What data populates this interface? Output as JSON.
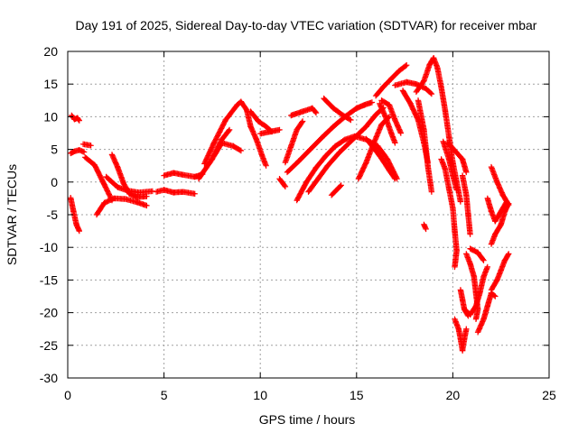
{
  "chart_data": {
    "type": "scatter",
    "title": "Day 191 of 2025, Sidereal Day-to-day VTEC variation (SDTVAR) for receiver mbar",
    "xlabel": "GPS time / hours",
    "ylabel": "SDTVAR / TECUs",
    "xlim": [
      0,
      25
    ],
    "ylim": [
      -30,
      20
    ],
    "xticks": [
      "0",
      "5",
      "10",
      "15",
      "20",
      "25"
    ],
    "yticks": [
      "20",
      "15",
      "10",
      "5",
      "0",
      "-5",
      "-10",
      "-15",
      "-20",
      "-25",
      "-30"
    ],
    "grid": true,
    "marker": "plus",
    "color": "#ff0000",
    "segments": [
      [
        [
          0.2,
          10.2
        ],
        [
          0.35,
          9.6
        ],
        [
          0.5,
          9.8
        ],
        [
          0.6,
          9.4
        ]
      ],
      [
        [
          0.15,
          4.4
        ],
        [
          0.35,
          4.7
        ],
        [
          0.6,
          4.9
        ],
        [
          0.85,
          4.6
        ]
      ],
      [
        [
          0.15,
          -2.4
        ],
        [
          0.3,
          -4.5
        ],
        [
          0.45,
          -6.5
        ],
        [
          0.6,
          -7.5
        ]
      ],
      [
        [
          0.8,
          5.8
        ],
        [
          1.2,
          5.6
        ]
      ],
      [
        [
          0.9,
          3.8
        ],
        [
          1.4,
          2.6
        ],
        [
          1.9,
          -0.4
        ],
        [
          2.3,
          -2.8
        ]
      ],
      [
        [
          1.5,
          -5.0
        ],
        [
          1.9,
          -3.2
        ],
        [
          2.4,
          -2.5
        ],
        [
          3.0,
          -2.6
        ],
        [
          3.6,
          -3.1
        ],
        [
          4.1,
          -3.6
        ]
      ],
      [
        [
          2.3,
          4.2
        ],
        [
          2.6,
          2.2
        ],
        [
          2.9,
          -0.2
        ],
        [
          3.2,
          -1.8
        ],
        [
          3.6,
          -2.3
        ],
        [
          4.1,
          -2.2
        ]
      ],
      [
        [
          2.0,
          0.8
        ],
        [
          2.6,
          -0.8
        ],
        [
          3.1,
          -1.3
        ],
        [
          3.7,
          -1.6
        ],
        [
          4.4,
          -1.4
        ]
      ],
      [
        [
          4.6,
          -1.5
        ],
        [
          5.0,
          -1.2
        ],
        [
          5.5,
          -1.6
        ],
        [
          6.0,
          -1.5
        ],
        [
          6.6,
          -1.8
        ]
      ],
      [
        [
          5.0,
          1.0
        ],
        [
          5.5,
          1.4
        ],
        [
          6.0,
          1.1
        ],
        [
          6.6,
          0.8
        ],
        [
          7.0,
          1.2
        ]
      ],
      [
        [
          6.8,
          0.5
        ],
        [
          7.5,
          3.5
        ],
        [
          8.0,
          6.5
        ],
        [
          8.4,
          8.0
        ]
      ],
      [
        [
          7.1,
          2.8
        ],
        [
          7.6,
          6.0
        ],
        [
          8.2,
          9.5
        ],
        [
          8.8,
          11.8
        ],
        [
          9.0,
          12.3
        ],
        [
          9.3,
          11.0
        ],
        [
          9.5,
          8.5
        ],
        [
          9.8,
          6.5
        ],
        [
          10.1,
          4.0
        ],
        [
          10.3,
          2.5
        ]
      ],
      [
        [
          7.6,
          4.0
        ],
        [
          8.0,
          6.0
        ],
        [
          8.6,
          5.5
        ],
        [
          9.0,
          4.8
        ]
      ],
      [
        [
          9.5,
          10.8
        ],
        [
          9.9,
          9.3
        ],
        [
          10.3,
          8.5
        ],
        [
          10.6,
          7.7
        ]
      ],
      [
        [
          10.0,
          7.4
        ],
        [
          10.5,
          7.7
        ],
        [
          11.0,
          8.0
        ]
      ],
      [
        [
          11.0,
          0.5
        ],
        [
          11.3,
          -0.7
        ]
      ],
      [
        [
          11.3,
          3.0
        ],
        [
          11.6,
          5.5
        ],
        [
          11.9,
          8.0
        ],
        [
          12.2,
          9.3
        ]
      ],
      [
        [
          11.4,
          1.5
        ],
        [
          12.0,
          3.2
        ],
        [
          12.6,
          5.0
        ],
        [
          13.2,
          6.8
        ],
        [
          13.8,
          8.5
        ],
        [
          14.4,
          10.0
        ],
        [
          15.0,
          11.3
        ],
        [
          15.4,
          11.8
        ],
        [
          15.8,
          12.2
        ]
      ],
      [
        [
          11.6,
          10.2
        ],
        [
          12.2,
          10.8
        ],
        [
          12.7,
          11.3
        ],
        [
          12.9,
          10.6
        ]
      ],
      [
        [
          11.9,
          -2.8
        ],
        [
          12.4,
          0.0
        ],
        [
          12.9,
          2.2
        ],
        [
          13.4,
          4.0
        ],
        [
          13.9,
          5.5
        ],
        [
          14.4,
          6.5
        ],
        [
          14.9,
          7.0
        ],
        [
          15.5,
          6.5
        ],
        [
          16.1,
          5.5
        ],
        [
          16.6,
          3.5
        ],
        [
          17.1,
          0.5
        ]
      ],
      [
        [
          12.5,
          -1.5
        ],
        [
          13.0,
          0.5
        ],
        [
          13.5,
          2.5
        ],
        [
          14.1,
          4.5
        ],
        [
          14.8,
          6.5
        ],
        [
          15.5,
          8.5
        ],
        [
          16.0,
          10.3
        ],
        [
          16.4,
          11.4
        ]
      ],
      [
        [
          13.7,
          -2.0
        ],
        [
          14.2,
          -0.5
        ]
      ],
      [
        [
          13.3,
          12.8
        ],
        [
          13.8,
          11.3
        ],
        [
          14.3,
          10.2
        ],
        [
          14.7,
          9.5
        ]
      ],
      [
        [
          15.1,
          0.5
        ],
        [
          15.5,
          3.0
        ],
        [
          15.9,
          6.0
        ],
        [
          16.3,
          8.8
        ],
        [
          16.7,
          10.0
        ]
      ],
      [
        [
          15.5,
          6.6
        ],
        [
          15.9,
          5.2
        ],
        [
          16.3,
          3.6
        ],
        [
          16.7,
          1.8
        ],
        [
          17.0,
          0.5
        ]
      ],
      [
        [
          16.2,
          12.0
        ],
        [
          16.5,
          10.0
        ],
        [
          16.8,
          7.5
        ],
        [
          17.0,
          6.0
        ]
      ],
      [
        [
          16.3,
          12.5
        ],
        [
          16.7,
          11.8
        ],
        [
          17.0,
          9.5
        ],
        [
          17.3,
          7.5
        ]
      ],
      [
        [
          16.0,
          13.2
        ],
        [
          16.4,
          14.6
        ],
        [
          16.8,
          15.8
        ],
        [
          17.2,
          17.0
        ],
        [
          17.6,
          17.9
        ]
      ],
      [
        [
          17.0,
          14.8
        ],
        [
          17.6,
          15.3
        ],
        [
          18.1,
          15.0
        ],
        [
          18.6,
          14.3
        ],
        [
          18.9,
          13.5
        ]
      ],
      [
        [
          17.4,
          14.0
        ],
        [
          17.8,
          12.0
        ],
        [
          18.2,
          9.5
        ],
        [
          18.5,
          6.0
        ],
        [
          18.7,
          3.0
        ]
      ],
      [
        [
          18.2,
          12.5
        ],
        [
          18.5,
          8.0
        ],
        [
          18.7,
          2.5
        ],
        [
          18.9,
          -1.5
        ]
      ],
      [
        [
          18.1,
          13.8
        ],
        [
          18.5,
          15.5
        ],
        [
          18.8,
          18.0
        ],
        [
          19.0,
          19.0
        ],
        [
          19.2,
          17.5
        ],
        [
          19.4,
          14.5
        ],
        [
          19.6,
          11.0
        ],
        [
          19.8,
          7.0
        ],
        [
          20.0,
          3.0
        ],
        [
          20.2,
          0.0
        ],
        [
          20.4,
          -3.0
        ]
      ],
      [
        [
          18.5,
          -6.5
        ],
        [
          18.6,
          -7.2
        ]
      ],
      [
        [
          19.4,
          3.5
        ],
        [
          19.6,
          2.0
        ],
        [
          19.8,
          -1.0
        ],
        [
          20.0,
          -4.0
        ],
        [
          20.1,
          -7.5
        ],
        [
          20.2,
          -10.5
        ],
        [
          20.1,
          -13.0
        ]
      ],
      [
        [
          19.7,
          6.0
        ],
        [
          19.9,
          5.5
        ],
        [
          20.2,
          4.5
        ],
        [
          20.5,
          3.5
        ],
        [
          20.7,
          1.5
        ]
      ],
      [
        [
          19.5,
          6.2
        ],
        [
          19.8,
          3.5
        ],
        [
          20.0,
          1.0
        ],
        [
          20.2,
          -1.2
        ]
      ],
      [
        [
          20.4,
          -16.5
        ],
        [
          20.5,
          -18.0
        ],
        [
          20.6,
          -19.5
        ],
        [
          20.8,
          -20.5
        ]
      ],
      [
        [
          20.1,
          -21.0
        ],
        [
          20.3,
          -22.5
        ],
        [
          20.4,
          -24.0
        ],
        [
          20.5,
          -25.8
        ],
        [
          20.6,
          -24.0
        ],
        [
          20.7,
          -22.5
        ]
      ],
      [
        [
          20.5,
          1.0
        ],
        [
          20.7,
          -2.0
        ],
        [
          20.8,
          -5.0
        ],
        [
          20.9,
          -8.0
        ]
      ],
      [
        [
          20.7,
          -11.0
        ],
        [
          20.9,
          -12.5
        ],
        [
          21.1,
          -14.5
        ],
        [
          21.2,
          -17.0
        ],
        [
          21.3,
          -19.5
        ],
        [
          21.2,
          -21.0
        ]
      ],
      [
        [
          20.6,
          -19.5
        ],
        [
          20.9,
          -20.3
        ],
        [
          21.2,
          -19.0
        ],
        [
          21.4,
          -17.0
        ],
        [
          21.6,
          -14.5
        ],
        [
          21.8,
          -13.0
        ]
      ],
      [
        [
          20.9,
          -10.2
        ],
        [
          21.3,
          -10.8
        ],
        [
          21.6,
          -12.0
        ]
      ],
      [
        [
          21.3,
          -23.0
        ],
        [
          21.6,
          -21.0
        ],
        [
          21.8,
          -19.0
        ],
        [
          22.0,
          -17.0
        ],
        [
          22.2,
          -17.5
        ]
      ],
      [
        [
          22.0,
          -16.5
        ],
        [
          22.3,
          -15.0
        ],
        [
          22.5,
          -13.5
        ],
        [
          22.7,
          -12.0
        ],
        [
          22.9,
          -11.0
        ]
      ],
      [
        [
          21.8,
          -2.5
        ],
        [
          22.0,
          -4.5
        ],
        [
          22.2,
          -6.0
        ],
        [
          22.5,
          -4.5
        ],
        [
          22.8,
          -3.0
        ]
      ],
      [
        [
          22.0,
          -9.5
        ],
        [
          22.2,
          -8.0
        ],
        [
          22.5,
          -6.5
        ],
        [
          22.7,
          -4.5
        ],
        [
          22.9,
          -3.3
        ]
      ],
      [
        [
          22.0,
          2.3
        ],
        [
          22.3,
          0.0
        ],
        [
          22.6,
          -2.0
        ],
        [
          22.9,
          -3.5
        ]
      ]
    ]
  }
}
